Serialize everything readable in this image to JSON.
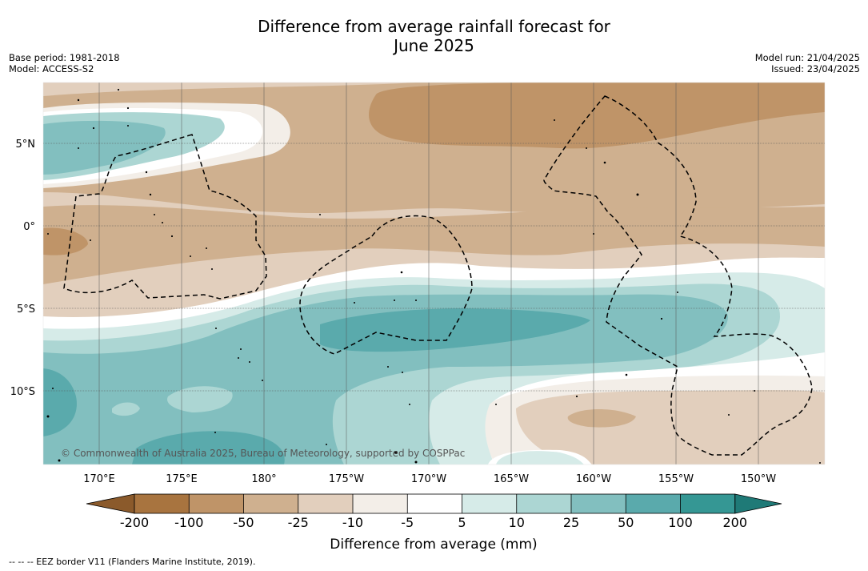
{
  "title_line1": "Difference from average rainfall forecast for",
  "title_line2": "June 2025",
  "base_period": "Base period: 1981-2018",
  "model": "Model: ACCESS-S2",
  "model_run": "Model run: 21/04/2025",
  "issued": "Issued: 23/04/2025",
  "lat_labels": [
    "5°N",
    "0°",
    "5°S",
    "10°S"
  ],
  "lon_labels": [
    "170°E",
    "175°E",
    "180°",
    "175°W",
    "170°W",
    "165°W",
    "160°W",
    "155°W",
    "150°W"
  ],
  "copyright": "© Commonwealth of Australia 2025, Bureau of Meteorology, supported by COSPPac",
  "colorbar": {
    "tick_labels": [
      "-200",
      "-100",
      "-50",
      "-25",
      "-10",
      "-5",
      "5",
      "10",
      "25",
      "50",
      "100",
      "200"
    ],
    "colors": [
      "#8b5a2b",
      "#a8743f",
      "#bf9468",
      "#cfb08f",
      "#e2cfbd",
      "#f3eee8",
      "#ffffff",
      "#d6ebe8",
      "#acd6d3",
      "#82bfbf",
      "#5aaaac",
      "#359794",
      "#1f7a77"
    ],
    "label": "Difference from average (mm)"
  },
  "legend_note": "--  --  -- EEZ border V11 (Flanders Marine Institute, 2019)."
}
